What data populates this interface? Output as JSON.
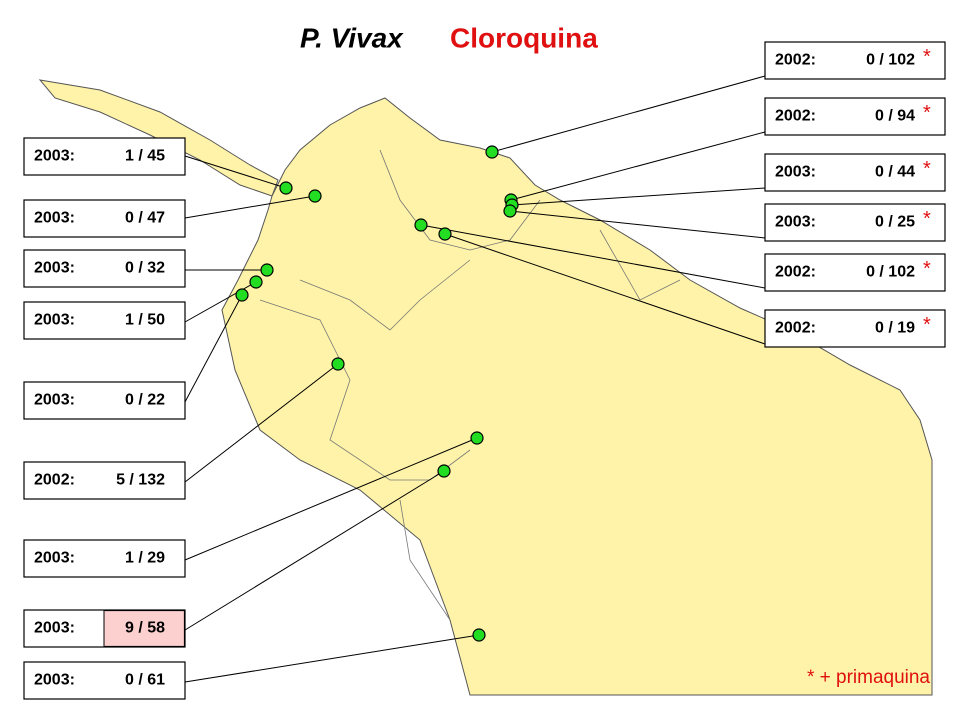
{
  "title": {
    "species": "P. Vivax",
    "drug": "Cloroquina"
  },
  "left_labels": [
    {
      "year": "2003:",
      "ratio": "1 / 45"
    },
    {
      "year": "2003:",
      "ratio": "0 / 47"
    },
    {
      "year": "2003:",
      "ratio": "0 / 32"
    },
    {
      "year": "2003:",
      "ratio": "1 / 50"
    },
    {
      "year": "2003:",
      "ratio": "0 / 22"
    },
    {
      "year": "2002:",
      "ratio": "5 / 132"
    },
    {
      "year": "2003:",
      "ratio": "1 / 29"
    },
    {
      "year": "2003:",
      "ratio": "9 / 58",
      "highlight": true
    },
    {
      "year": "2003:",
      "ratio": "0 / 61"
    }
  ],
  "right_labels": [
    {
      "year": "2002:",
      "ratio": "0 / 102",
      "star": "*"
    },
    {
      "year": "2002:",
      "ratio": "0 / 94",
      "star": "*"
    },
    {
      "year": "2003:",
      "ratio": "0 / 44",
      "star": "*"
    },
    {
      "year": "2003:",
      "ratio": "0 / 25",
      "star": "*"
    },
    {
      "year": "2002:",
      "ratio": "0 / 102",
      "star": "*"
    },
    {
      "year": "2002:",
      "ratio": "0 / 19",
      "star": "*"
    }
  ],
  "note": "* + primaquina"
}
